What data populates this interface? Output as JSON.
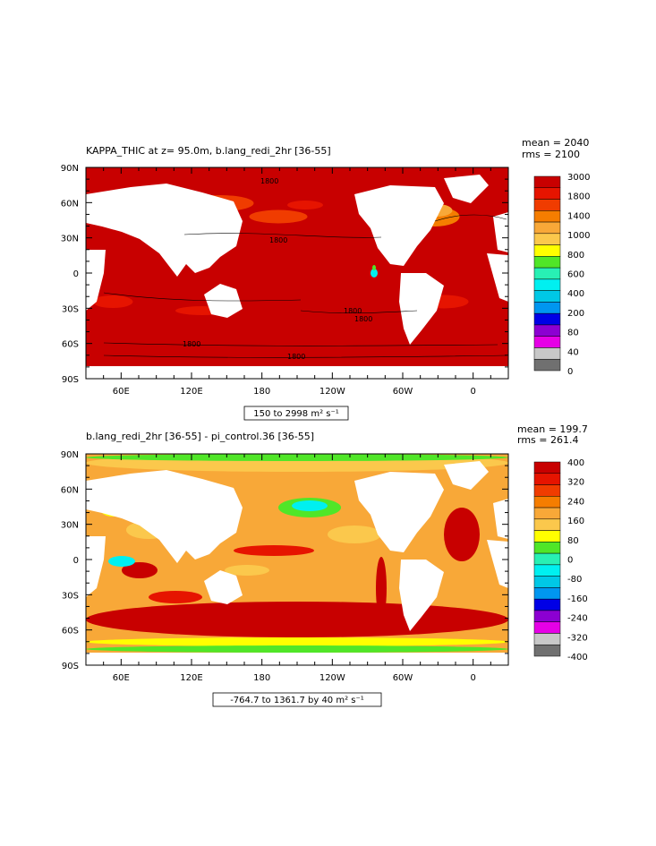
{
  "panels": [
    {
      "title": "KAPPA_THIC at z=  95.0m, b.lang_redi_2hr [36-55]",
      "stats": {
        "mean": "mean = 2040",
        "rms": "rms = 2100"
      },
      "range_label": "150 to 2998 m² s⁻¹",
      "colorbar": {
        "labels": [
          "3000",
          "1800",
          "1400",
          "1000",
          "800",
          "600",
          "400",
          "200",
          "80",
          "40",
          "0"
        ],
        "colors": [
          "#c80000",
          "#e61400",
          "#f03c00",
          "#f57d00",
          "#f8a838",
          "#fbc84c",
          "#ffff00",
          "#50e628",
          "#28f0b4",
          "#00f0f0",
          "#00c8e6",
          "#0096f0",
          "#0000e6",
          "#8c00d2",
          "#e600e6",
          "#c8c8c8",
          "#707070"
        ]
      },
      "contour_labels": [
        "1800",
        "1800",
        "1800",
        "1800",
        "1800",
        "1800"
      ]
    },
    {
      "title": "b.lang_redi_2hr [36-55] - pi_control.36 [36-55]",
      "stats": {
        "mean": "mean = 199.7",
        "rms": "rms = 261.4"
      },
      "range_label": "-764.7 to 1361.7 by 40 m² s⁻¹",
      "colorbar": {
        "labels": [
          "400",
          "320",
          "240",
          "160",
          "80",
          "0",
          "-80",
          "-160",
          "-240",
          "-320",
          "-400"
        ],
        "colors": [
          "#c80000",
          "#e61400",
          "#f03c00",
          "#f57d00",
          "#f8a838",
          "#fbc84c",
          "#ffff00",
          "#50e628",
          "#28f0b4",
          "#00f0f0",
          "#00c8e6",
          "#0096f0",
          "#0000e6",
          "#8c00d2",
          "#e600e6",
          "#c8c8c8",
          "#707070"
        ]
      }
    }
  ],
  "axes": {
    "lat_labels": [
      "90N",
      "60N",
      "30N",
      "0",
      "30S",
      "60S",
      "90S"
    ],
    "lon_labels": [
      "60E",
      "120E",
      "180",
      "120W",
      "60W",
      "0"
    ]
  }
}
